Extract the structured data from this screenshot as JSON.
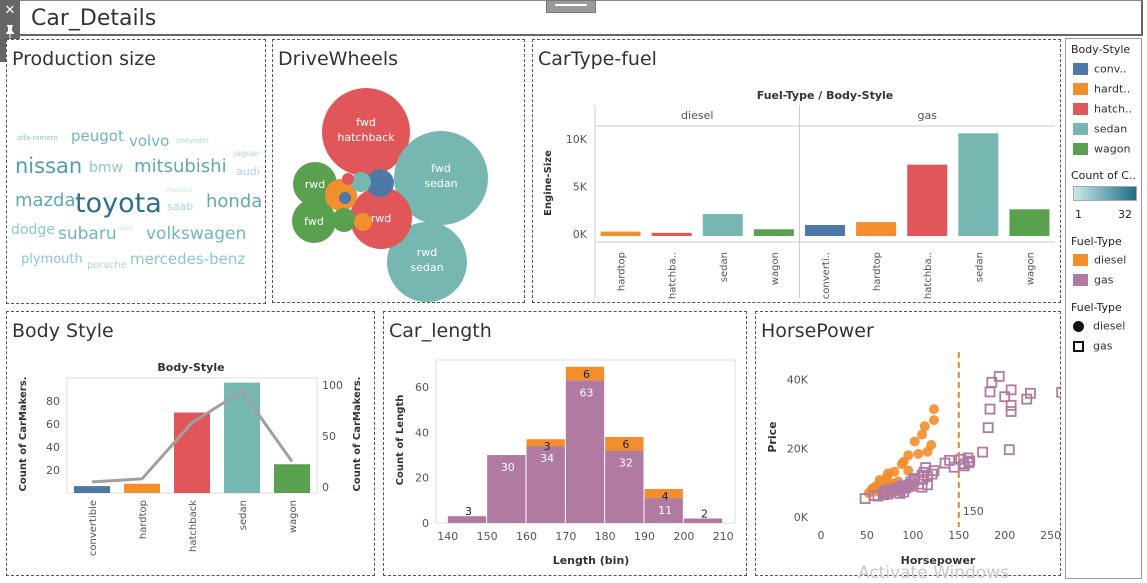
{
  "header": {
    "title": "Car_Details"
  },
  "panels": {
    "production_size": "Production size",
    "drive_wheels": "DriveWheels",
    "cartype_fuel": "CarType-fuel",
    "body_style": "Body Style",
    "car_length": "Car_length",
    "horsepower": "HorsePower"
  },
  "wordcloud": [
    {
      "text": "alfa-romero",
      "size": 7,
      "color": "#8cc7cc"
    },
    {
      "text": "peugot",
      "size": 15,
      "color": "#6fb6bf"
    },
    {
      "text": "volvo",
      "size": 15,
      "color": "#6fb6bf"
    },
    {
      "text": "chevrolet",
      "size": 7,
      "color": "#a9d6da"
    },
    {
      "text": "jaguar",
      "size": 8,
      "color": "#a9d6da"
    },
    {
      "text": "nissan",
      "size": 21,
      "color": "#4f9dad"
    },
    {
      "text": "bmw",
      "size": 14,
      "color": "#8cc7cc"
    },
    {
      "text": "mitsubishi",
      "size": 18,
      "color": "#5ea9b6"
    },
    {
      "text": "audi",
      "size": 11,
      "color": "#a9d6da"
    },
    {
      "text": "mercury",
      "size": 6,
      "color": "#bfe0e3"
    },
    {
      "text": "mazda",
      "size": 18,
      "color": "#5ea9b6"
    },
    {
      "text": "toyota",
      "size": 27,
      "color": "#2d6f8c"
    },
    {
      "text": "saab",
      "size": 11,
      "color": "#a9d6da"
    },
    {
      "text": "honda",
      "size": 18,
      "color": "#5ea9b6"
    },
    {
      "text": "isuzu",
      "size": 6,
      "color": "#bfe0e3"
    },
    {
      "text": "dodge",
      "size": 14,
      "color": "#8cc7cc"
    },
    {
      "text": "subaru",
      "size": 17,
      "color": "#6fb6bf"
    },
    {
      "text": "volkswagen",
      "size": 17,
      "color": "#6fb6bf"
    },
    {
      "text": "plymouth",
      "size": 13,
      "color": "#8cc7cc"
    },
    {
      "text": "porsche",
      "size": 10,
      "color": "#a9d6da"
    },
    {
      "text": "mercedes-benz",
      "size": 15,
      "color": "#8cc7cc"
    }
  ],
  "colors": {
    "convertible": "#4e79a7",
    "hardtop": "#f28e2b",
    "hatchback": "#e15759",
    "sedan": "#76b7b2",
    "wagon": "#59a14f",
    "diesel": "#f28e2b",
    "gas": "#b07aa1",
    "line": "#a0a0a0"
  },
  "legend": {
    "body_style_title": "Body-Style",
    "body_style_items": [
      "conv..",
      "hardt..",
      "hatch..",
      "sedan",
      "wagon"
    ],
    "count_title": "Count of C..",
    "count_min": "1",
    "count_max": "32",
    "fuel_title": "Fuel-Type",
    "fuel_items": [
      "diesel",
      "gas"
    ],
    "fuel_shape_title": "Fuel-Type",
    "fuel_shape_items": [
      "diesel",
      "gas"
    ]
  },
  "watermark": "Activate Windows",
  "chart_data": [
    {
      "id": "drive_wheels",
      "type": "bubble",
      "bubbles": [
        {
          "drive": "fwd",
          "body": "hatchback",
          "label_line1": "fwd",
          "label_line2": "hatchback",
          "value": 49
        },
        {
          "drive": "fwd",
          "body": "sedan",
          "label_line1": "fwd",
          "label_line2": "sedan",
          "value": 57
        },
        {
          "drive": "rwd",
          "body": "sedan",
          "label_line1": "rwd",
          "label_line2": "sedan",
          "value": 40
        },
        {
          "drive": "rwd",
          "body": "hatchback",
          "label_line1": "rwd",
          "label_line2": "",
          "value": 22
        },
        {
          "drive": "rwd",
          "body": "wagon",
          "label_line1": "rwd",
          "label_line2": "",
          "value": 11
        },
        {
          "drive": "fwd",
          "body": "wagon",
          "label_line1": "fwd",
          "label_line2": "",
          "value": 13
        },
        {
          "drive": "fwd",
          "body": "hardtop",
          "label_line1": "",
          "label_line2": "",
          "value": 8
        },
        {
          "drive": "rwd",
          "body": "convertible",
          "label_line1": "",
          "label_line2": "",
          "value": 5
        },
        {
          "drive": "4wd",
          "body": "wagon",
          "label_line1": "",
          "label_line2": "",
          "value": 4
        },
        {
          "drive": "4wd",
          "body": "sedan",
          "label_line1": "",
          "label_line2": "",
          "value": 3
        },
        {
          "drive": "rwd",
          "body": "hardtop",
          "label_line1": "",
          "label_line2": "",
          "value": 3
        },
        {
          "drive": "fwd",
          "body": "convertible",
          "label_line1": "",
          "label_line2": "",
          "value": 1
        },
        {
          "drive": "4wd",
          "body": "hatchback",
          "label_line1": "",
          "label_line2": "",
          "value": 1
        }
      ]
    },
    {
      "id": "cartype_fuel",
      "type": "bar",
      "title": "Fuel-Type / Body-Style",
      "ylabel": "Engine-Size",
      "ylim": [
        0,
        12000
      ],
      "yticks": [
        0,
        5000,
        10000
      ],
      "ytick_labels": [
        "0K",
        "5K",
        "10K"
      ],
      "groups": [
        {
          "name": "diesel",
          "categories": [
            "hardtop",
            "hatchba..",
            "sedan",
            "wagon"
          ],
          "bodies": [
            "hardtop",
            "hatchback",
            "sedan",
            "wagon"
          ],
          "values": [
            250,
            120,
            2100,
            500
          ]
        },
        {
          "name": "gas",
          "categories": [
            "converti..",
            "hardtop",
            "hatchba..",
            "sedan",
            "wagon"
          ],
          "bodies": [
            "convertible",
            "hardtop",
            "hatchback",
            "sedan",
            "wagon"
          ],
          "values": [
            950,
            1250,
            7300,
            10600,
            2600
          ]
        }
      ]
    },
    {
      "id": "body_style",
      "type": "bar+line",
      "title": "Body-Style",
      "ylabel": "Count of CarMakers.",
      "ylabel2": "Count of CarMakers.",
      "categories": [
        "convertible",
        "hardtop",
        "hatchback",
        "sedan",
        "wagon"
      ],
      "values": [
        6,
        8,
        70,
        96,
        25
      ],
      "line_values": [
        5,
        8,
        63,
        94,
        25
      ],
      "ylim": [
        0,
        100
      ],
      "yticks": [
        20,
        40,
        60,
        80
      ],
      "ylim2": [
        0,
        100
      ],
      "yticks2": [
        0,
        50,
        100
      ]
    },
    {
      "id": "car_length",
      "type": "bar",
      "stacked": true,
      "xlabel": "Length (bin)",
      "ylabel": "Count of Length",
      "xlim": [
        137,
        213
      ],
      "xticks": [
        140,
        150,
        160,
        170,
        180,
        190,
        200,
        210
      ],
      "ylim": [
        0,
        72
      ],
      "yticks": [
        0,
        20,
        40,
        60
      ],
      "bins": [
        140,
        150,
        160,
        170,
        180,
        190,
        200
      ],
      "bin_width": 10,
      "series": [
        {
          "name": "gas",
          "values": [
            3,
            30,
            34,
            63,
            32,
            11,
            2
          ]
        },
        {
          "name": "diesel",
          "values": [
            0,
            0,
            3,
            6,
            6,
            4,
            0
          ]
        }
      ],
      "labels": [
        {
          "x": 145,
          "text": "3",
          "on": "total"
        },
        {
          "x": 155,
          "text": "30",
          "on": "gas"
        },
        {
          "x": 165,
          "text": "34",
          "on": "gas"
        },
        {
          "x": 165,
          "text": "3",
          "on": "total"
        },
        {
          "x": 175,
          "text": "63",
          "on": "gas"
        },
        {
          "x": 175,
          "text": "6",
          "on": "total"
        },
        {
          "x": 185,
          "text": "32",
          "on": "gas"
        },
        {
          "x": 185,
          "text": "6",
          "on": "total"
        },
        {
          "x": 195,
          "text": "11",
          "on": "gas"
        },
        {
          "x": 195,
          "text": "4",
          "on": "total"
        },
        {
          "x": 205,
          "text": "2",
          "on": "total"
        }
      ]
    },
    {
      "id": "horsepower",
      "type": "scatter",
      "xlabel": "Horsepower",
      "ylabel": "Price",
      "xlim": [
        0,
        270
      ],
      "xticks": [
        0,
        50,
        100,
        150,
        200,
        250
      ],
      "ylim": [
        -2000,
        48000
      ],
      "yticks": [
        0,
        20000,
        40000
      ],
      "ytick_labels": [
        "0K",
        "20K",
        "40K"
      ],
      "reference_line": {
        "x": 150,
        "label": "150"
      },
      "series": [
        {
          "name": "diesel",
          "points": [
            [
              52,
              7000
            ],
            [
              55,
              7800
            ],
            [
              56,
              8300
            ],
            [
              60,
              8500
            ],
            [
              60,
              9000
            ],
            [
              62,
              7400
            ],
            [
              64,
              9800
            ],
            [
              64,
              10800
            ],
            [
              66,
              8900
            ],
            [
              68,
              10200
            ],
            [
              70,
              10500
            ],
            [
              72,
              7500
            ],
            [
              72,
              11800
            ],
            [
              73,
              12700
            ],
            [
              75,
              9300
            ],
            [
              78,
              9800
            ],
            [
              80,
              13200
            ],
            [
              84,
              10400
            ],
            [
              88,
              15400
            ],
            [
              90,
              16100
            ],
            [
              95,
              13500
            ],
            [
              95,
              18000
            ],
            [
              102,
              22000
            ],
            [
              106,
              18400
            ],
            [
              110,
              24000
            ],
            [
              113,
              26400
            ],
            [
              116,
              19000
            ],
            [
              120,
              21000
            ],
            [
              123,
              28200
            ],
            [
              123,
              31400
            ]
          ]
        },
        {
          "name": "gas",
          "points": [
            [
              48,
              5400
            ],
            [
              58,
              6300
            ],
            [
              62,
              6100
            ],
            [
              68,
              6500
            ],
            [
              69,
              6900
            ],
            [
              69,
              7200
            ],
            [
              70,
              7600
            ],
            [
              70,
              7700
            ],
            [
              73,
              6700
            ],
            [
              76,
              7300
            ],
            [
              76,
              8100
            ],
            [
              82,
              7900
            ],
            [
              82,
              8300
            ],
            [
              84,
              8500
            ],
            [
              85,
              7800
            ],
            [
              86,
              6900
            ],
            [
              86,
              8200
            ],
            [
              88,
              8700
            ],
            [
              88,
              9100
            ],
            [
              90,
              7300
            ],
            [
              92,
              8400
            ],
            [
              94,
              8900
            ],
            [
              97,
              9500
            ],
            [
              98,
              10200
            ],
            [
              100,
              9000
            ],
            [
              101,
              11200
            ],
            [
              102,
              10800
            ],
            [
              106,
              9600
            ],
            [
              110,
              12200
            ],
            [
              110,
              8700
            ],
            [
              111,
              11000
            ],
            [
              112,
              13000
            ],
            [
              114,
              14400
            ],
            [
              116,
              9400
            ],
            [
              116,
              11800
            ],
            [
              121,
              12500
            ],
            [
              123,
              13500
            ],
            [
              135,
              15700
            ],
            [
              140,
              16500
            ],
            [
              145,
              14500
            ],
            [
              152,
              16800
            ],
            [
              155,
              15500
            ],
            [
              156,
              14900
            ],
            [
              160,
              17200
            ],
            [
              161,
              15800
            ],
            [
              162,
              16300
            ],
            [
              176,
              18900
            ],
            [
              182,
              26000
            ],
            [
              184,
              31400
            ],
            [
              184,
              36400
            ],
            [
              186,
              39200
            ],
            [
              194,
              40900
            ],
            [
              200,
              35000
            ],
            [
              205,
              19600
            ],
            [
              207,
              30700
            ],
            [
              207,
              32500
            ],
            [
              207,
              37000
            ],
            [
              224,
              34300
            ],
            [
              228,
              36000
            ],
            [
              262,
              36300
            ]
          ]
        }
      ]
    }
  ]
}
